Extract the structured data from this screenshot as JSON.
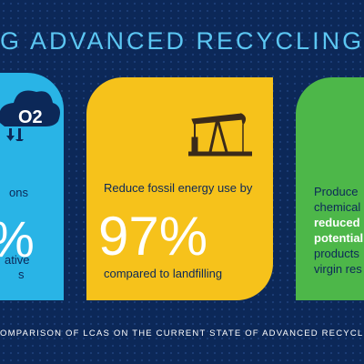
{
  "header": {
    "title": "G ADVANCED RECYCLING"
  },
  "cards": [
    {
      "icon_text": "O2",
      "lines": [
        "ons",
        "%",
        "ative",
        "s"
      ]
    },
    {
      "text": "Reduce fossil energy use by",
      "stat": "97%",
      "note": "compared to landfilling"
    },
    {
      "lines": [
        "Produce",
        "chemical",
        "reduced",
        "potential",
        "products",
        "virgin res"
      ]
    }
  ],
  "footer": "OMPARISON OF LCAS ON THE CURRENT STATE OF ADVANCED RECYCLIN"
}
